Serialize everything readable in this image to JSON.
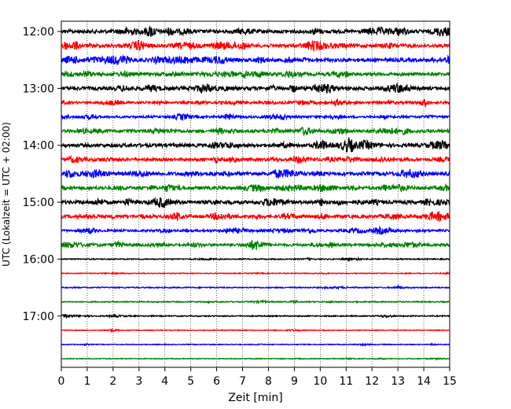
{
  "chart_data": {
    "type": "line",
    "title": "",
    "xlabel": "Zeit  [min]",
    "ylabel": "UTC (Lokalzeit = UTC + 02:00)",
    "xlim": [
      0,
      15
    ],
    "x_ticks": [
      "0",
      "1",
      "2",
      "3",
      "4",
      "5",
      "6",
      "7",
      "8",
      "9",
      "10",
      "11",
      "12",
      "13",
      "14",
      "15"
    ],
    "y_ticks": [
      "12:00",
      "13:00",
      "14:00",
      "15:00",
      "16:00",
      "17:00"
    ],
    "grid": "vertical dotted lines at each minute",
    "row_colors": [
      "#000000",
      "#ff0000",
      "#0000ff",
      "#008000"
    ],
    "series": [
      {
        "start": "12:00",
        "amplitude": 2.2
      },
      {
        "start": "12:15",
        "amplitude": 2.2
      },
      {
        "start": "12:30",
        "amplitude": 2.2
      },
      {
        "start": "12:45",
        "amplitude": 2.0
      },
      {
        "start": "13:00",
        "amplitude": 2.2
      },
      {
        "start": "13:15",
        "amplitude": 1.4
      },
      {
        "start": "13:30",
        "amplitude": 1.4
      },
      {
        "start": "13:45",
        "amplitude": 1.8
      },
      {
        "start": "14:00",
        "amplitude": 2.2
      },
      {
        "start": "14:15",
        "amplitude": 1.8
      },
      {
        "start": "14:30",
        "amplitude": 2.2
      },
      {
        "start": "14:45",
        "amplitude": 2.0
      },
      {
        "start": "15:00",
        "amplitude": 2.2
      },
      {
        "start": "15:15",
        "amplitude": 2.0
      },
      {
        "start": "15:30",
        "amplitude": 1.4
      },
      {
        "start": "15:45",
        "amplitude": 1.6
      },
      {
        "start": "16:00",
        "amplitude": 0.7
      },
      {
        "start": "16:15",
        "amplitude": 0.5
      },
      {
        "start": "16:30",
        "amplitude": 0.7
      },
      {
        "start": "16:45",
        "amplitude": 0.7
      },
      {
        "start": "17:00",
        "amplitude": 0.7
      },
      {
        "start": "17:15",
        "amplitude": 0.5
      },
      {
        "start": "17:30",
        "amplitude": 0.5
      },
      {
        "start": "17:45",
        "amplitude": 0.5
      }
    ]
  }
}
